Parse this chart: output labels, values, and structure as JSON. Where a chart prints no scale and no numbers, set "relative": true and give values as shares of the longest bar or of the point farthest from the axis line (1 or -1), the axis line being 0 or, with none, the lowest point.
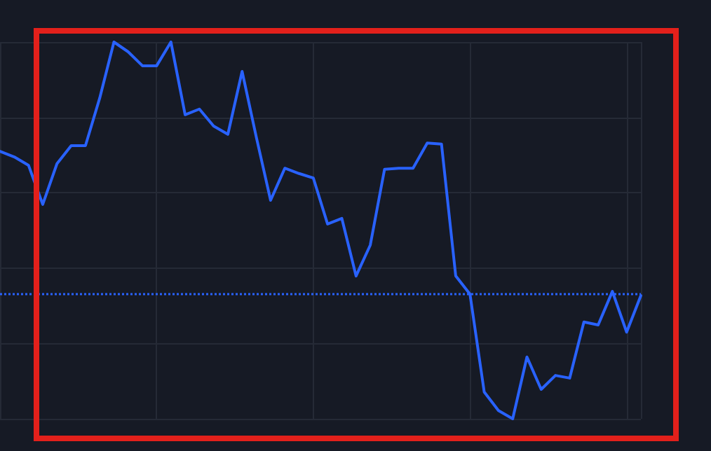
{
  "chart_data": {
    "type": "line",
    "relative": true,
    "grid": true,
    "marker": "none",
    "line_style": "solid",
    "categories": [
      null,
      null,
      null,
      null,
      null,
      null,
      null,
      null,
      null,
      null,
      null,
      null,
      null,
      null,
      null,
      null,
      null,
      null,
      null,
      null,
      null,
      null,
      null,
      null,
      null,
      null,
      null,
      null,
      null,
      null,
      null,
      null,
      null,
      null,
      null,
      null,
      null,
      null,
      null,
      null,
      null,
      null,
      null,
      null,
      null,
      null
    ],
    "series": [
      {
        "color": "#2962ff",
        "values": [
          0.71,
          0.695,
          0.673,
          0.569,
          0.677,
          0.725,
          0.725,
          0.851,
          1,
          0.974,
          0.937,
          0.937,
          1,
          0.807,
          0.822,
          0.777,
          0.755,
          0.922,
          0.747,
          0.58,
          0.665,
          0.651,
          0.639,
          0.517,
          0.532,
          0.379,
          0.461,
          0.662,
          0.665,
          0.665,
          0.732,
          0.729,
          0.379,
          0.331,
          0.071,
          0.022,
          0,
          0.164,
          0.078,
          0.115,
          0.108,
          0.257,
          0.249,
          0.338,
          0.23,
          0.327
        ]
      }
    ],
    "ref_lines": [
      {
        "axis": "y",
        "value": 0.327,
        "color": "#2962ff",
        "line_style": "dotted"
      }
    ]
  }
}
